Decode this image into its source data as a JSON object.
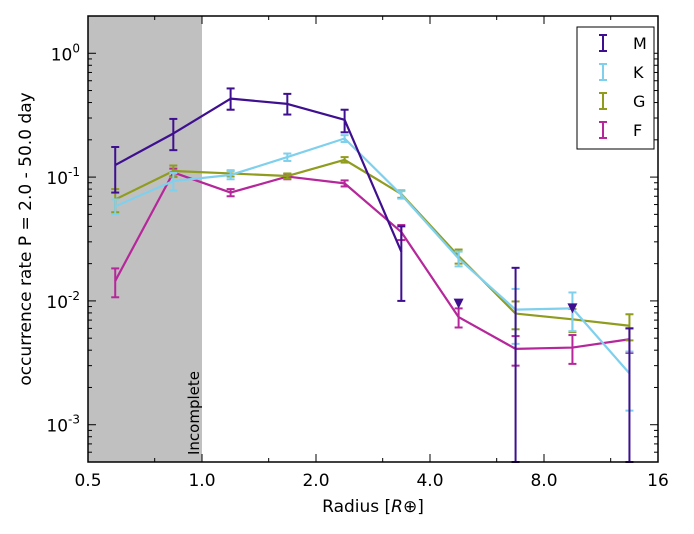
{
  "chart_data": {
    "type": "line",
    "xscale": "log2",
    "yscale": "log10",
    "xlabel": "Radius [",
    "xlabel_unit": "R⊕",
    "xlabel_close": "]",
    "ylabel": "occurrence rate P = 2.0 - 50.0 day",
    "xlim": [
      0.5,
      16
    ],
    "ylim": [
      0.0005,
      2
    ],
    "xticks": [
      {
        "value": 0.5,
        "label": "0.5"
      },
      {
        "value": 1,
        "label": "1.0"
      },
      {
        "value": 2,
        "label": "2.0"
      },
      {
        "value": 4,
        "label": "4.0"
      },
      {
        "value": 8,
        "label": "8.0"
      },
      {
        "value": 16,
        "label": "16"
      }
    ],
    "yticks": [
      {
        "value": 0.001,
        "base": "10",
        "exp": "-3"
      },
      {
        "value": 0.01,
        "base": "10",
        "exp": "-2"
      },
      {
        "value": 0.1,
        "base": "10",
        "exp": "-1"
      },
      {
        "value": 1,
        "base": "10",
        "exp": "0"
      }
    ],
    "shaded_region": {
      "x": [
        0.5,
        1.0
      ],
      "label": "Incomplete",
      "color": "#c0c0c0"
    },
    "legend_position": "top-right",
    "series": [
      {
        "name": "M",
        "color": "#3e0f8f",
        "x": [
          0.59,
          0.84,
          1.19,
          1.68,
          2.38,
          3.36,
          4.76,
          6.73,
          9.51,
          13.45
        ],
        "y": [
          0.125,
          0.225,
          0.43,
          0.39,
          0.29,
          0.025,
          null,
          null,
          null,
          null
        ],
        "err_low": [
          0.05,
          0.06,
          0.08,
          0.07,
          0.06,
          0.015,
          null,
          null,
          null,
          null
        ],
        "err_high": [
          0.05,
          0.07,
          0.09,
          0.08,
          0.06,
          0.015,
          null,
          null,
          null,
          null
        ],
        "upper_limits": [
          {
            "x": 4.76,
            "y": 0.0095
          },
          {
            "x": 9.51,
            "y": 0.0087
          }
        ],
        "extra_errorbars": [
          {
            "x": 6.73,
            "y_low": 0.0005,
            "y_high": 0.0185
          },
          {
            "x": 13.45,
            "y_low": 0.0005,
            "y_high": 0.006
          }
        ]
      },
      {
        "name": "K",
        "color": "#7fd0ec",
        "x": [
          0.59,
          0.84,
          1.19,
          1.68,
          2.38,
          3.36,
          4.76,
          6.73,
          9.51,
          13.45
        ],
        "y": [
          0.058,
          0.093,
          0.104,
          0.145,
          0.205,
          0.072,
          0.022,
          0.0085,
          0.0087,
          0.0026
        ],
        "err_low": [
          0.008,
          0.015,
          0.008,
          0.01,
          0.013,
          0.005,
          0.003,
          0.004,
          0.003,
          0.0013
        ],
        "err_high": [
          0.008,
          0.015,
          0.008,
          0.01,
          0.013,
          0.005,
          0.003,
          0.004,
          0.003,
          0.0013
        ]
      },
      {
        "name": "G",
        "color": "#8f9c1d",
        "x": [
          0.59,
          0.84,
          1.19,
          1.68,
          2.38,
          3.36,
          4.76,
          6.73,
          9.51,
          13.45
        ],
        "y": [
          0.066,
          0.112,
          0.107,
          0.102,
          0.138,
          0.073,
          0.023,
          0.0079,
          0.0071,
          0.0063
        ],
        "err_low": [
          0.014,
          0.012,
          0.006,
          0.005,
          0.007,
          0.005,
          0.003,
          0.002,
          0.0015,
          0.0015
        ],
        "err_high": [
          0.014,
          0.012,
          0.006,
          0.005,
          0.007,
          0.005,
          0.003,
          0.002,
          0.0015,
          0.0015
        ]
      },
      {
        "name": "F",
        "color": "#b5279a",
        "x": [
          0.59,
          0.84,
          1.19,
          1.68,
          2.38,
          3.36,
          4.76,
          6.73,
          9.51,
          13.45
        ],
        "y": [
          0.0145,
          0.109,
          0.075,
          0.101,
          0.089,
          0.036,
          0.0074,
          0.0041,
          0.0042,
          0.0049
        ],
        "err_low": [
          0.0038,
          0.008,
          0.005,
          0.005,
          0.005,
          0.005,
          0.0013,
          0.0011,
          0.0011,
          0.0011
        ],
        "err_high": [
          0.0038,
          0.008,
          0.005,
          0.005,
          0.005,
          0.005,
          0.0013,
          0.0011,
          0.0011,
          0.0011
        ]
      }
    ]
  }
}
